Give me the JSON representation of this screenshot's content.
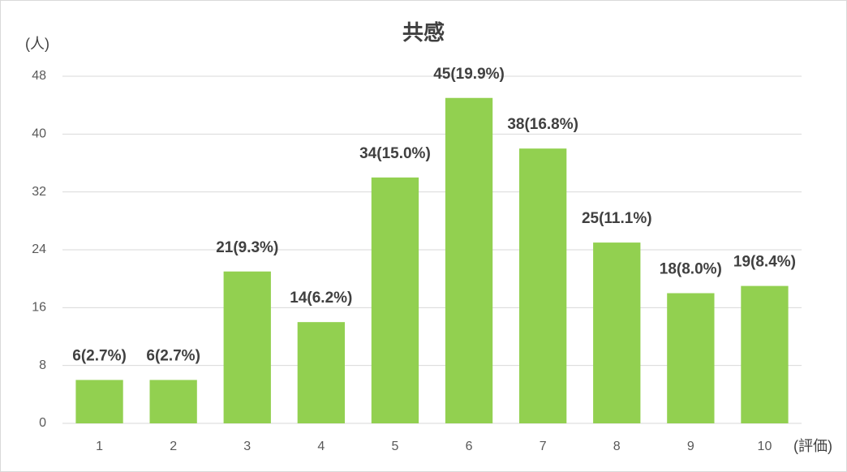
{
  "chart_data": {
    "type": "bar",
    "title": "共感",
    "y_label": "(人)",
    "x_label": "(評価)",
    "categories": [
      "1",
      "2",
      "3",
      "4",
      "5",
      "6",
      "7",
      "8",
      "9",
      "10"
    ],
    "values": [
      6,
      6,
      21,
      14,
      34,
      45,
      38,
      25,
      18,
      19
    ],
    "value_labels": [
      "6(2.7%)",
      "6(2.7%)",
      "21(9.3%)",
      "14(6.2%)",
      "34(15.0%)",
      "45(19.9%)",
      "38(16.8%)",
      "25(11.1%)",
      "18(8.0%)",
      "19(8.4%)"
    ],
    "color": "#92d050",
    "ylim": [
      0,
      48
    ],
    "yticks": [
      0,
      8,
      16,
      24,
      32,
      40,
      48
    ],
    "grid": true
  }
}
